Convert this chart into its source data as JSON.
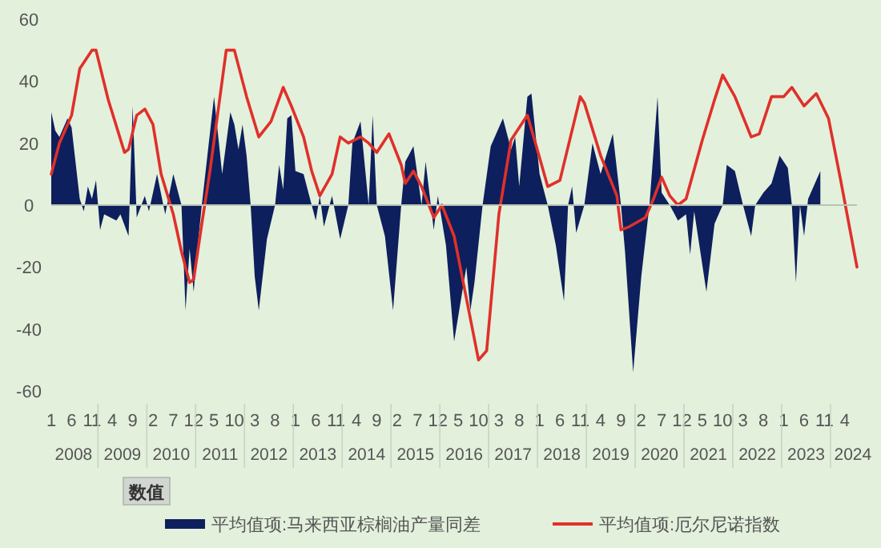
{
  "chart_data": {
    "type": "area",
    "legend": "bottom",
    "xlim": [
      "2008-01",
      "2024-07"
    ],
    "ylim": [
      -60,
      60
    ],
    "yticks": [
      -60,
      -40,
      -20,
      0,
      20,
      40,
      60
    ],
    "xticks": [
      {
        "value": "2008-01",
        "label": "1"
      },
      {
        "value": "2008-06",
        "label": "6"
      },
      {
        "value": "2008-11",
        "label": "11"
      },
      {
        "value": "2009-04",
        "label": "4"
      },
      {
        "value": "2009-09",
        "label": "9"
      },
      {
        "value": "2010-02",
        "label": "2"
      },
      {
        "value": "2010-07",
        "label": "7"
      },
      {
        "value": "2010-12",
        "label": "12"
      },
      {
        "value": "2011-05",
        "label": "5"
      },
      {
        "value": "2011-10",
        "label": "10"
      },
      {
        "value": "2012-03",
        "label": "3"
      },
      {
        "value": "2012-08",
        "label": "8"
      },
      {
        "value": "2013-01",
        "label": "1"
      },
      {
        "value": "2013-06",
        "label": "6"
      },
      {
        "value": "2013-11",
        "label": "11"
      },
      {
        "value": "2014-04",
        "label": "4"
      },
      {
        "value": "2014-09",
        "label": "9"
      },
      {
        "value": "2015-02",
        "label": "2"
      },
      {
        "value": "2015-07",
        "label": "7"
      },
      {
        "value": "2015-12",
        "label": "12"
      },
      {
        "value": "2016-05",
        "label": "5"
      },
      {
        "value": "2016-10",
        "label": "10"
      },
      {
        "value": "2017-03",
        "label": "3"
      },
      {
        "value": "2017-08",
        "label": "8"
      },
      {
        "value": "2018-01",
        "label": "1"
      },
      {
        "value": "2018-06",
        "label": "6"
      },
      {
        "value": "2018-11",
        "label": "11"
      },
      {
        "value": "2019-04",
        "label": "4"
      },
      {
        "value": "2019-09",
        "label": "9"
      },
      {
        "value": "2020-02",
        "label": "2"
      },
      {
        "value": "2020-07",
        "label": "7"
      },
      {
        "value": "2020-12",
        "label": "12"
      },
      {
        "value": "2021-05",
        "label": "5"
      },
      {
        "value": "2021-10",
        "label": "10"
      },
      {
        "value": "2022-03",
        "label": "3"
      },
      {
        "value": "2022-08",
        "label": "8"
      },
      {
        "value": "2023-01",
        "label": "1"
      },
      {
        "value": "2023-06",
        "label": "6"
      },
      {
        "value": "2023-11",
        "label": "11"
      },
      {
        "value": "2024-04",
        "label": "4"
      }
    ],
    "annotations": [
      "2008",
      "2009",
      "2010",
      "2011",
      "2012",
      "2013",
      "2014",
      "2015",
      "2016",
      "2017",
      "2018",
      "2019",
      "2020",
      "2021",
      "2022",
      "2023",
      "2024",
      "数值"
    ],
    "series": [
      {
        "name": "平均值项:马来西亚棕榈油产量同差",
        "color": "#0d1f5c",
        "x": [
          "2008-01",
          "2008-02",
          "2008-03",
          "2008-05",
          "2008-06",
          "2008-08",
          "2008-09",
          "2008-10",
          "2008-11",
          "2008-12",
          "2009-01",
          "2009-02",
          "2009-05",
          "2009-06",
          "2009-08",
          "2009-09",
          "2009-10",
          "2009-12",
          "2010-01",
          "2010-03",
          "2010-05",
          "2010-07",
          "2010-09",
          "2010-10",
          "2010-11",
          "2010-12",
          "2011-01",
          "2011-02",
          "2011-05",
          "2011-07",
          "2011-09",
          "2011-10",
          "2011-11",
          "2011-12",
          "2012-01",
          "2012-02",
          "2012-03",
          "2012-04",
          "2012-06",
          "2012-08",
          "2012-09",
          "2012-10",
          "2012-11",
          "2012-12",
          "2013-01",
          "2013-03",
          "2013-05",
          "2013-06",
          "2013-07",
          "2013-08",
          "2013-10",
          "2013-12",
          "2014-02",
          "2014-03",
          "2014-05",
          "2014-07",
          "2014-08",
          "2014-09",
          "2014-11",
          "2015-01",
          "2015-03",
          "2015-04",
          "2015-06",
          "2015-08",
          "2015-09",
          "2015-11",
          "2015-12",
          "2016-02",
          "2016-04",
          "2016-07",
          "2016-08",
          "2016-09",
          "2016-11",
          "2017-01",
          "2017-04",
          "2017-06",
          "2017-07",
          "2017-08",
          "2017-10",
          "2017-11",
          "2018-01",
          "2018-03",
          "2018-05",
          "2018-07",
          "2018-08",
          "2018-09",
          "2018-10",
          "2018-12",
          "2019-02",
          "2019-04",
          "2019-07",
          "2019-09",
          "2019-10",
          "2019-12",
          "2020-02",
          "2020-04",
          "2020-06",
          "2020-07",
          "2020-09",
          "2020-11",
          "2021-01",
          "2021-02",
          "2021-03",
          "2021-06",
          "2021-08",
          "2021-10",
          "2021-11",
          "2022-01",
          "2022-03",
          "2022-05",
          "2022-06",
          "2022-08",
          "2022-10",
          "2022-12",
          "2023-02",
          "2023-03",
          "2023-04",
          "2023-05",
          "2023-06",
          "2023-07",
          "2023-10"
        ],
        "values": [
          30,
          24,
          22,
          28,
          25,
          2,
          -2,
          6,
          2,
          8,
          -8,
          -3,
          -5,
          -3,
          -10,
          32,
          -4,
          3,
          -2,
          10,
          -3,
          10,
          0,
          -34,
          -14,
          -28,
          -13,
          0,
          35,
          10,
          30,
          26,
          18,
          26,
          16,
          0,
          -23,
          -34,
          -11,
          0,
          13,
          5,
          28,
          29,
          11,
          10,
          0,
          -5,
          3,
          -7,
          3,
          -11,
          0,
          20,
          27,
          0,
          29,
          0,
          -10,
          -34,
          0,
          14,
          19,
          0,
          14,
          -8,
          3,
          -13,
          -44,
          -20,
          -34,
          -25,
          0,
          19,
          28,
          18,
          22,
          6,
          35,
          36,
          10,
          0,
          -13,
          -31,
          0,
          6,
          -9,
          0,
          20,
          10,
          23,
          0,
          -15,
          -54,
          -23,
          0,
          35,
          4,
          0,
          -5,
          -3,
          -16,
          -2,
          -28,
          -6,
          0,
          13,
          11,
          0,
          -10,
          0,
          4,
          7,
          16,
          12,
          0,
          -25,
          0,
          -10,
          2,
          11
        ]
      },
      {
        "name": "平均值项:厄尔尼诺指数",
        "type": "line",
        "color": "#e0302a",
        "x": [
          "2008-01",
          "2008-03",
          "2008-06",
          "2008-08",
          "2008-11",
          "2008-12",
          "2009-03",
          "2009-07",
          "2009-08",
          "2009-10",
          "2009-12",
          "2010-02",
          "2010-04",
          "2010-07",
          "2010-09",
          "2010-11",
          "2010-12",
          "2011-02",
          "2011-04",
          "2011-08",
          "2011-10",
          "2012-01",
          "2012-04",
          "2012-07",
          "2012-10",
          "2012-12",
          "2013-03",
          "2013-05",
          "2013-07",
          "2013-10",
          "2013-12",
          "2014-02",
          "2014-05",
          "2014-07",
          "2014-09",
          "2014-12",
          "2015-03",
          "2015-04",
          "2015-06",
          "2015-08",
          "2015-11",
          "2016-01",
          "2016-04",
          "2016-07",
          "2016-10",
          "2016-12",
          "2017-03",
          "2017-06",
          "2017-10",
          "2017-12",
          "2018-03",
          "2018-06",
          "2018-11",
          "2018-12",
          "2019-04",
          "2019-08",
          "2019-09",
          "2019-11",
          "2020-03",
          "2020-05",
          "2020-07",
          "2020-09",
          "2020-11",
          "2021-01",
          "2021-05",
          "2021-08",
          "2021-10",
          "2022-01",
          "2022-05",
          "2022-07",
          "2022-10",
          "2023-01",
          "2023-03",
          "2023-06",
          "2023-09",
          "2023-12",
          "2024-03",
          "2024-07"
        ],
        "values": [
          10,
          20,
          29,
          44,
          50,
          50,
          34,
          17,
          18,
          29,
          31,
          26,
          10,
          -3,
          -15,
          -25,
          -24,
          -6,
          11,
          50,
          50,
          35,
          22,
          27,
          38,
          32,
          22,
          11,
          3,
          10,
          22,
          20,
          22,
          20,
          17,
          23,
          13,
          7,
          11,
          6,
          -4,
          0,
          -10,
          -30,
          -50,
          -47,
          -3,
          21,
          29,
          20,
          6,
          8,
          35,
          33,
          16,
          3,
          -8,
          -7,
          -4,
          2,
          9,
          3,
          0,
          2,
          21,
          34,
          42,
          35,
          22,
          23,
          35,
          35,
          38,
          32,
          36,
          28,
          8,
          -20
        ]
      }
    ]
  }
}
